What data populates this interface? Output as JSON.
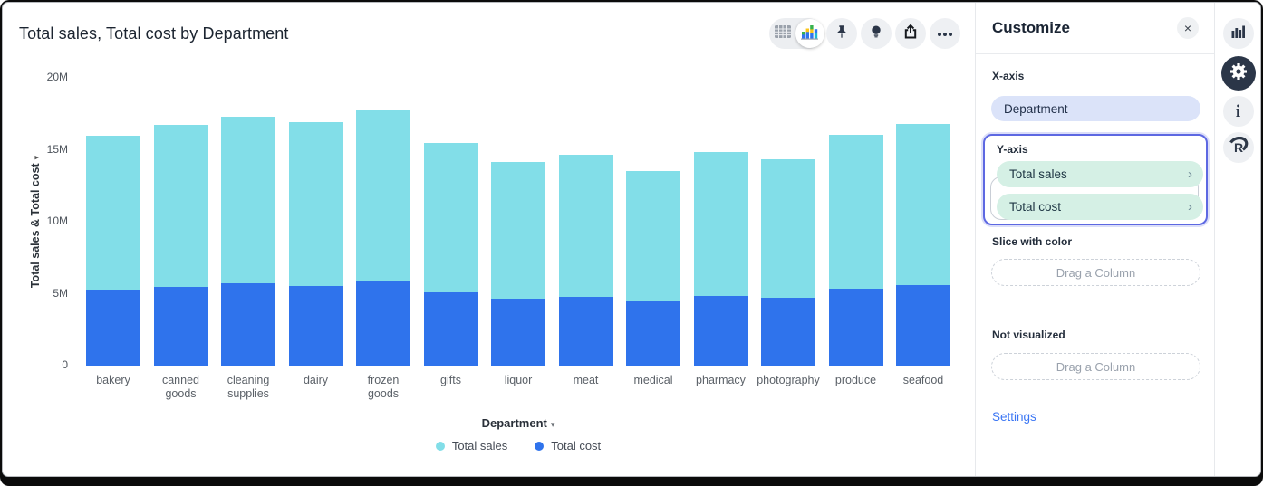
{
  "chart_data": {
    "type": "bar",
    "stacked": true,
    "title": "Total sales, Total cost by Department",
    "categories": [
      "bakery",
      "canned goods",
      "cleaning supplies",
      "dairy",
      "frozen goods",
      "gifts",
      "liquor",
      "meat",
      "medical",
      "pharmacy",
      "photography",
      "produce",
      "seafood"
    ],
    "series": [
      {
        "name": "Total sales",
        "color": "#82DEE8",
        "values_millions": [
          10.7,
          11.2,
          11.6,
          11.4,
          11.9,
          10.4,
          9.5,
          9.85,
          9.05,
          10.0,
          9.6,
          10.7,
          11.2
        ]
      },
      {
        "name": "Total cost",
        "color": "#2F73EC",
        "values_millions": [
          5.3,
          5.5,
          5.7,
          5.55,
          5.85,
          5.1,
          4.65,
          4.8,
          4.5,
          4.85,
          4.75,
          5.35,
          5.6
        ]
      }
    ],
    "stack_order_bottom_to_top": [
      "Total cost",
      "Total sales"
    ],
    "xlabel": "Department",
    "ylabel": "Total sales & Total cost",
    "yticks": [
      {
        "label": "20M",
        "value": 20
      },
      {
        "label": "15M",
        "value": 15
      },
      {
        "label": "10M",
        "value": 10
      },
      {
        "label": "5M",
        "value": 5
      },
      {
        "label": "0",
        "value": 0
      }
    ],
    "ylim_millions": [
      0,
      20
    ],
    "grid": false,
    "legend_position": "bottom"
  },
  "toolbar": {
    "view_toggle": {
      "options": [
        "table-view",
        "chart-view"
      ],
      "selected": "chart-view"
    },
    "actions": [
      "pin",
      "lightbulb",
      "share",
      "more"
    ]
  },
  "customize": {
    "title": "Customize",
    "x_axis": {
      "label": "X-axis",
      "value": "Department"
    },
    "y_axis": {
      "label": "Y-axis",
      "items": [
        "Total sales",
        "Total cost"
      ]
    },
    "slice": {
      "label": "Slice with color",
      "placeholder": "Drag a Column"
    },
    "not_visualized": {
      "label": "Not visualized",
      "placeholder": "Drag a Column"
    },
    "settings_label": "Settings"
  },
  "rail": {
    "icons": [
      "bar-chart",
      "gear",
      "info",
      "r-logo"
    ],
    "active": "gear"
  },
  "icons": {
    "close": "×",
    "chevron_right": "›",
    "dropdown_arrow": "▾"
  },
  "colors": {
    "sales": "#82DEE8",
    "cost": "#2F73EC",
    "x_pill_bg": "#dbe3f9",
    "y_pill_bg": "#d5f0e5",
    "section_border": "#5d68e2",
    "settings_link": "#3b76f4"
  }
}
